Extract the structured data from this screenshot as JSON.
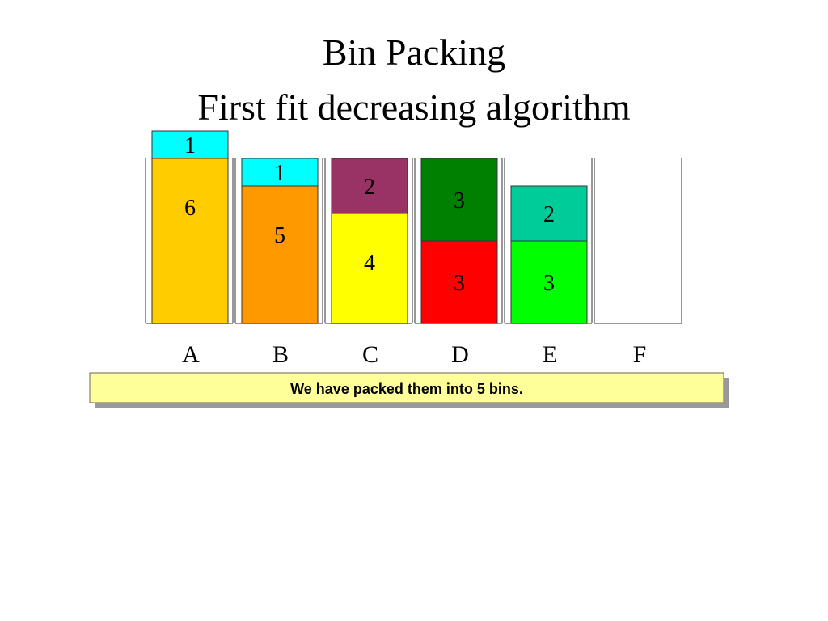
{
  "title": [
    "Bin Packing",
    "First fit decreasing algorithm"
  ],
  "bins": [
    {
      "label": "A",
      "items": [
        {
          "size": 6,
          "color": "#ffcc00"
        },
        {
          "size": 1,
          "color": "#00ffff"
        }
      ]
    },
    {
      "label": "B",
      "items": [
        {
          "size": 5,
          "color": "#ff9900"
        },
        {
          "size": 1,
          "color": "#00ffff"
        }
      ]
    },
    {
      "label": "C",
      "items": [
        {
          "size": 4,
          "color": "#ffff00"
        },
        {
          "size": 2,
          "color": "#993366"
        }
      ]
    },
    {
      "label": "D",
      "items": [
        {
          "size": 3,
          "color": "#ff0000"
        },
        {
          "size": 3,
          "color": "#008000"
        }
      ]
    },
    {
      "label": "E",
      "items": [
        {
          "size": 3,
          "color": "#00ff00"
        },
        {
          "size": 2,
          "color": "#00cc99"
        }
      ]
    },
    {
      "label": "F",
      "items": []
    }
  ],
  "caption": "We have packed them into 5 bins."
}
